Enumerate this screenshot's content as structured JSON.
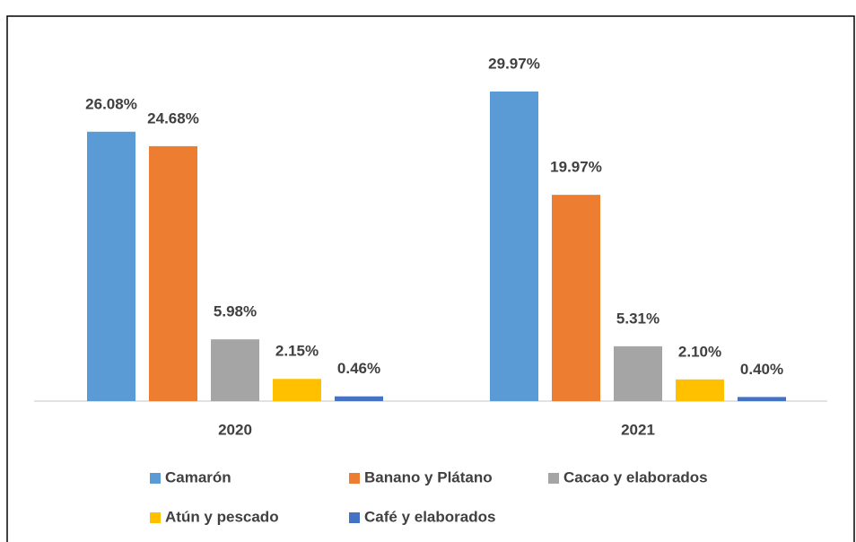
{
  "chart_data": {
    "type": "bar",
    "categories": [
      "2020",
      "2021"
    ],
    "series": [
      {
        "name": "Camarón",
        "color": "#5b9bd5",
        "values": [
          26.08,
          29.97
        ],
        "value_labels": [
          "26.08%",
          "29.97%"
        ]
      },
      {
        "name": "Banano y Plátano",
        "color": "#ed7d31",
        "values": [
          24.68,
          19.97
        ],
        "value_labels": [
          "24.68%",
          "19.97%"
        ]
      },
      {
        "name": "Cacao y elaborados",
        "color": "#a5a5a5",
        "values": [
          5.98,
          5.31
        ],
        "value_labels": [
          "5.98%",
          "5.31%"
        ]
      },
      {
        "name": "Atún y pescado",
        "color": "#ffc000",
        "values": [
          2.15,
          2.1
        ],
        "value_labels": [
          "2.15%",
          "2.10%"
        ]
      },
      {
        "name": "Café y elaborados",
        "color": "#4472c4",
        "values": [
          0.46,
          0.4
        ],
        "value_labels": [
          "0.46%",
          "0.40%"
        ]
      }
    ]
  }
}
